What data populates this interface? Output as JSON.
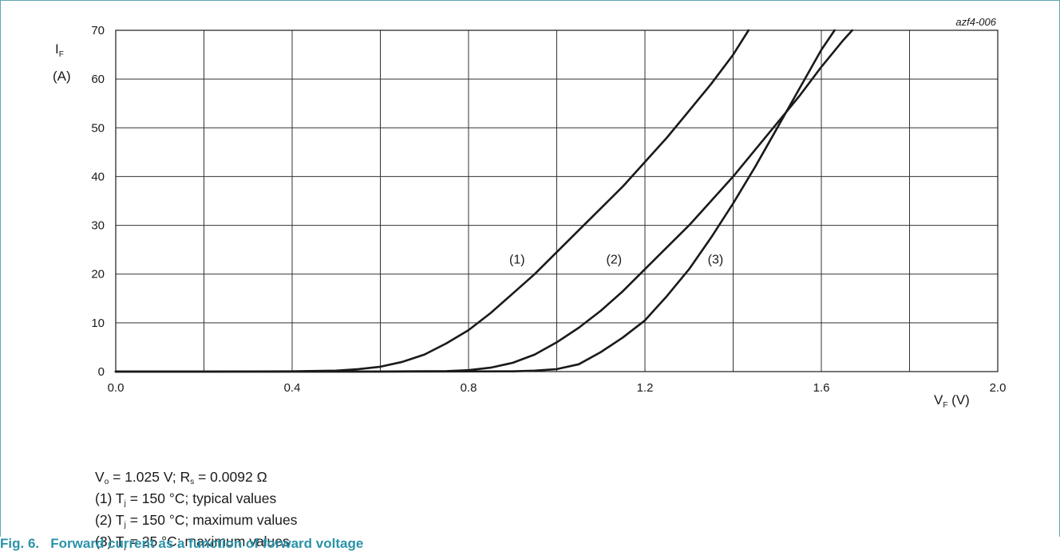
{
  "figure_code": "azf4-006",
  "caption": "Fig. 6.   Forward current as a function of forward voltage",
  "notes": [
    {
      "pre": "V",
      "sub": "o",
      "post": " = 1.025 V; R",
      "sub2": "s",
      "post2": " = 0.0092 Ω"
    },
    {
      "pre": "(1) T",
      "sub": "j",
      "post": " = 150 °C; typical values"
    },
    {
      "pre": "(2) T",
      "sub": "j",
      "post": " = 150 °C; maximum values"
    },
    {
      "pre": "(3) T",
      "sub": "j",
      "post": " = 25 °C; maximum values"
    }
  ],
  "chart_data": {
    "type": "line",
    "xlabel": {
      "main": "V",
      "sub": "F",
      "unit": " (V)"
    },
    "ylabel": {
      "main": "I",
      "sub": "F",
      "unit": "(A)"
    },
    "xlim": [
      0,
      2.0
    ],
    "ylim": [
      0,
      70
    ],
    "xticks": [
      0.0,
      0.4,
      0.8,
      1.2,
      1.6,
      2.0
    ],
    "xtick_labels": [
      "0.0",
      "0.4",
      "0.8",
      "1.2",
      "1.6",
      "2.0"
    ],
    "xgrid": [
      0.0,
      0.2,
      0.4,
      0.6,
      0.8,
      1.0,
      1.2,
      1.4,
      1.6,
      1.8,
      2.0
    ],
    "yticks": [
      0,
      10,
      20,
      30,
      40,
      50,
      60,
      70
    ],
    "ytick_labels": [
      "0",
      "10",
      "20",
      "30",
      "40",
      "50",
      "60",
      "70"
    ],
    "grid": true,
    "line_color": "#1a1a1a",
    "series": [
      {
        "label": "(1)",
        "label_at": [
          0.91,
          22.2
        ],
        "points": [
          [
            0.0,
            0
          ],
          [
            0.2,
            0
          ],
          [
            0.4,
            0.05
          ],
          [
            0.5,
            0.2
          ],
          [
            0.55,
            0.5
          ],
          [
            0.6,
            1.0
          ],
          [
            0.65,
            2.0
          ],
          [
            0.7,
            3.5
          ],
          [
            0.75,
            5.8
          ],
          [
            0.8,
            8.5
          ],
          [
            0.85,
            12
          ],
          [
            0.9,
            16
          ],
          [
            0.95,
            20
          ],
          [
            1.0,
            24.5
          ],
          [
            1.05,
            29
          ],
          [
            1.1,
            33.5
          ],
          [
            1.15,
            38
          ],
          [
            1.2,
            43
          ],
          [
            1.25,
            48
          ],
          [
            1.3,
            53.5
          ],
          [
            1.35,
            59
          ],
          [
            1.4,
            65
          ],
          [
            1.435,
            70
          ]
        ]
      },
      {
        "label": "(2)",
        "label_at": [
          1.13,
          22.2
        ],
        "points": [
          [
            0.0,
            0
          ],
          [
            0.4,
            0
          ],
          [
            0.6,
            0.02
          ],
          [
            0.75,
            0.1
          ],
          [
            0.8,
            0.3
          ],
          [
            0.85,
            0.8
          ],
          [
            0.9,
            1.8
          ],
          [
            0.95,
            3.5
          ],
          [
            1.0,
            6
          ],
          [
            1.05,
            9
          ],
          [
            1.1,
            12.5
          ],
          [
            1.15,
            16.5
          ],
          [
            1.2,
            21
          ],
          [
            1.25,
            25.5
          ],
          [
            1.3,
            30
          ],
          [
            1.35,
            35
          ],
          [
            1.4,
            40
          ],
          [
            1.45,
            45.5
          ],
          [
            1.5,
            51
          ],
          [
            1.55,
            56.5
          ],
          [
            1.6,
            62.5
          ],
          [
            1.65,
            68
          ],
          [
            1.67,
            70
          ]
        ]
      },
      {
        "label": "(3)",
        "label_at": [
          1.36,
          22.2
        ],
        "points": [
          [
            0.0,
            0
          ],
          [
            0.6,
            0
          ],
          [
            0.9,
            0.05
          ],
          [
            0.95,
            0.2
          ],
          [
            1.0,
            0.5
          ],
          [
            1.05,
            1.5
          ],
          [
            1.1,
            4
          ],
          [
            1.15,
            7
          ],
          [
            1.2,
            10.5
          ],
          [
            1.25,
            15.5
          ],
          [
            1.3,
            21
          ],
          [
            1.35,
            27.5
          ],
          [
            1.4,
            34.5
          ],
          [
            1.45,
            42
          ],
          [
            1.5,
            50
          ],
          [
            1.55,
            58
          ],
          [
            1.6,
            66
          ],
          [
            1.63,
            70
          ]
        ]
      }
    ]
  }
}
